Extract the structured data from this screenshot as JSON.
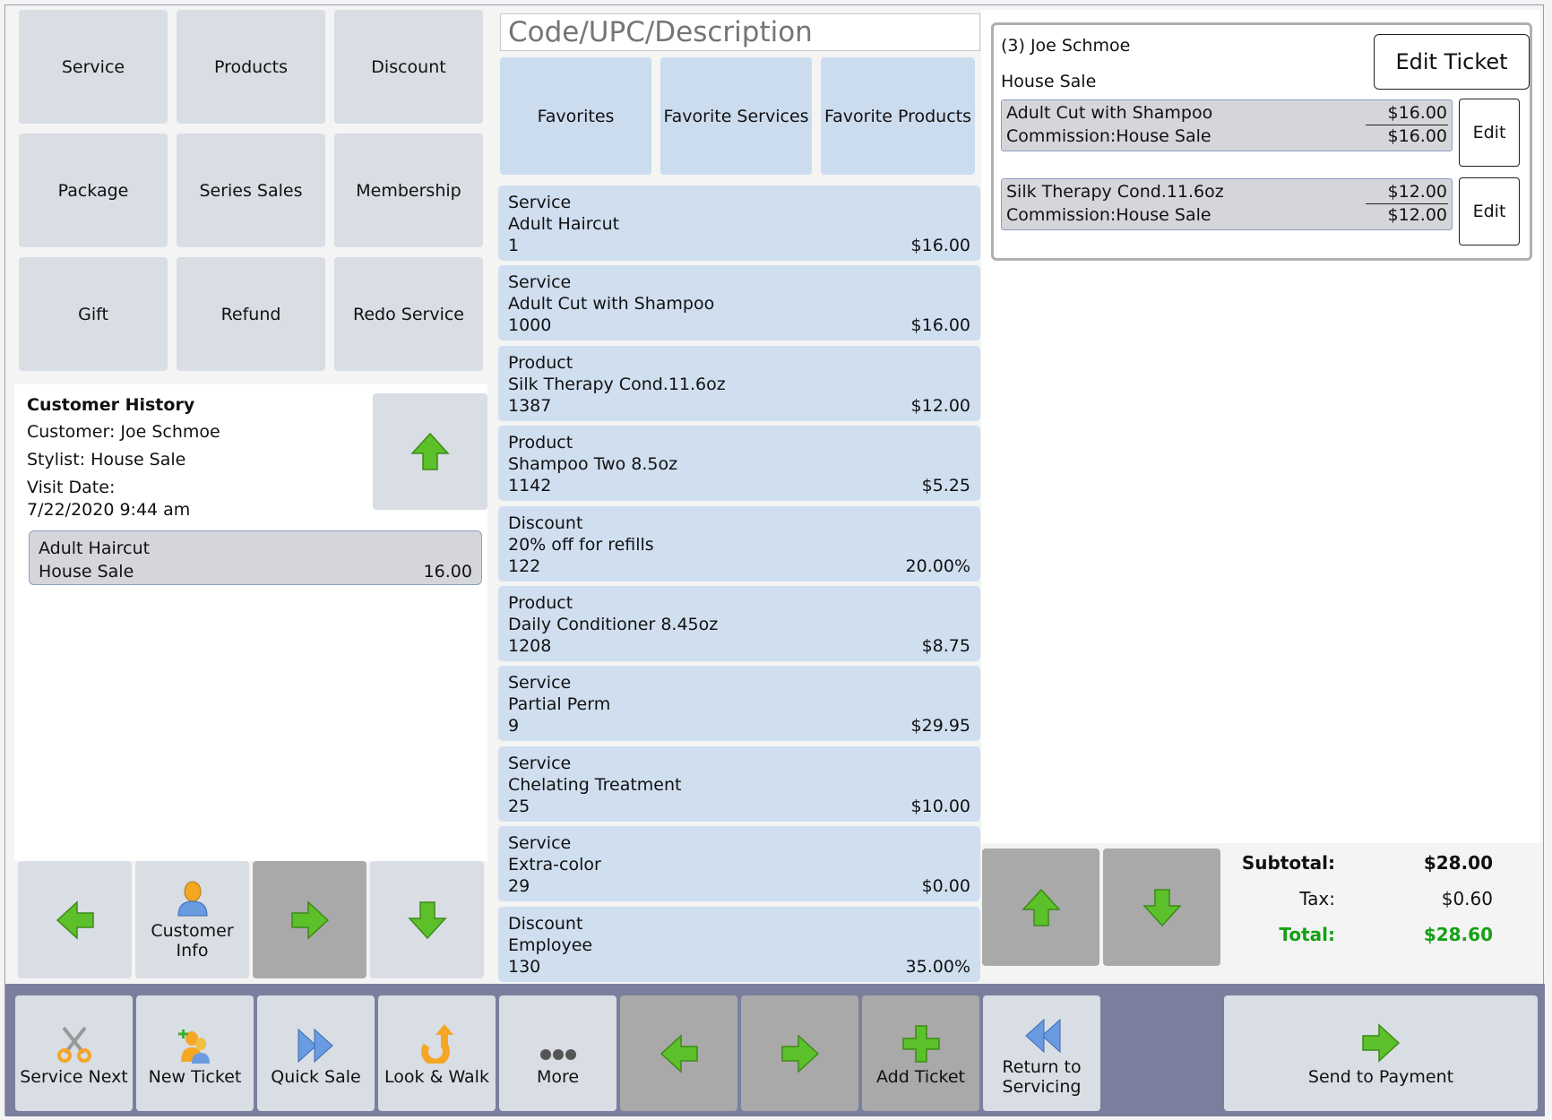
{
  "categories": {
    "service": "Service",
    "products": "Products",
    "discount": "Discount",
    "package": "Package",
    "series_sales": "Series Sales",
    "membership": "Membership",
    "gift": "Gift",
    "refund": "Refund",
    "redo_service": "Redo Service"
  },
  "history": {
    "title": "Customer History",
    "customer": "Customer: Joe Schmoe",
    "stylist": "Stylist: House Sale",
    "visit_label": "Visit Date:",
    "visit_date": "7/22/2020 9:44 am",
    "item": {
      "name": "Adult Haircut",
      "stylist": "House Sale",
      "amount": "16.00"
    }
  },
  "left_nav": {
    "customer_info": "Customer Info"
  },
  "search": {
    "placeholder": "Code/UPC/Description"
  },
  "favorites": {
    "favorites": "Favorites",
    "favorite_services": "Favorite Services",
    "favorite_products": "Favorite Products"
  },
  "items": [
    {
      "type": "Service",
      "name": "Adult Haircut",
      "code": "1",
      "price": "$16.00"
    },
    {
      "type": "Service",
      "name": "Adult Cut with Shampoo",
      "code": "1000",
      "price": "$16.00"
    },
    {
      "type": "Product",
      "name": "Silk Therapy Cond.11.6oz",
      "code": "1387",
      "price": "$12.00"
    },
    {
      "type": "Product",
      "name": "Shampoo Two 8.5oz",
      "code": "1142",
      "price": "$5.25"
    },
    {
      "type": "Discount",
      "name": "20% off for refills",
      "code": "122",
      "price": "20.00%"
    },
    {
      "type": "Product",
      "name": "Daily Conditioner 8.45oz",
      "code": "1208",
      "price": "$8.75"
    },
    {
      "type": "Service",
      "name": "Partial Perm",
      "code": "9",
      "price": "$29.95"
    },
    {
      "type": "Service",
      "name": "Chelating Treatment",
      "code": "25",
      "price": "$10.00"
    },
    {
      "type": "Service",
      "name": "Extra-color",
      "code": "29",
      "price": "$0.00"
    },
    {
      "type": "Discount",
      "name": "Employee",
      "code": "130",
      "price": "35.00%"
    }
  ],
  "ticket": {
    "customer": "(3) Joe Schmoe",
    "stylist": "House Sale",
    "edit_ticket": "Edit Ticket",
    "lines": [
      {
        "name": "Adult Cut with Shampoo",
        "commission": "Commission:House Sale",
        "price": "$16.00",
        "total": "$16.00",
        "edit": "Edit"
      },
      {
        "name": "Silk Therapy Cond.11.6oz",
        "commission": "Commission:House Sale",
        "price": "$12.00",
        "total": "$12.00",
        "edit": "Edit"
      }
    ]
  },
  "totals": {
    "subtotal_label": "Subtotal:",
    "subtotal": "$28.00",
    "tax_label": "Tax:",
    "tax": "$0.60",
    "total_label": "Total:",
    "total": "$28.60"
  },
  "bottom": {
    "service_next": "Service Next",
    "new_ticket": "New Ticket",
    "quick_sale": "Quick Sale",
    "look_walk": "Look & Walk",
    "more": "More",
    "add_ticket": "Add Ticket",
    "return_servicing": "Return to Servicing",
    "send_payment": "Send to Payment"
  },
  "colors": {
    "tile": "#d9dde4",
    "tile_dark": "#a9a9a9",
    "item_blue": "#cfdff0",
    "bottom_bar": "#7b7f9e",
    "total_green": "#14a014",
    "arrow_green": "#5cc02a"
  }
}
